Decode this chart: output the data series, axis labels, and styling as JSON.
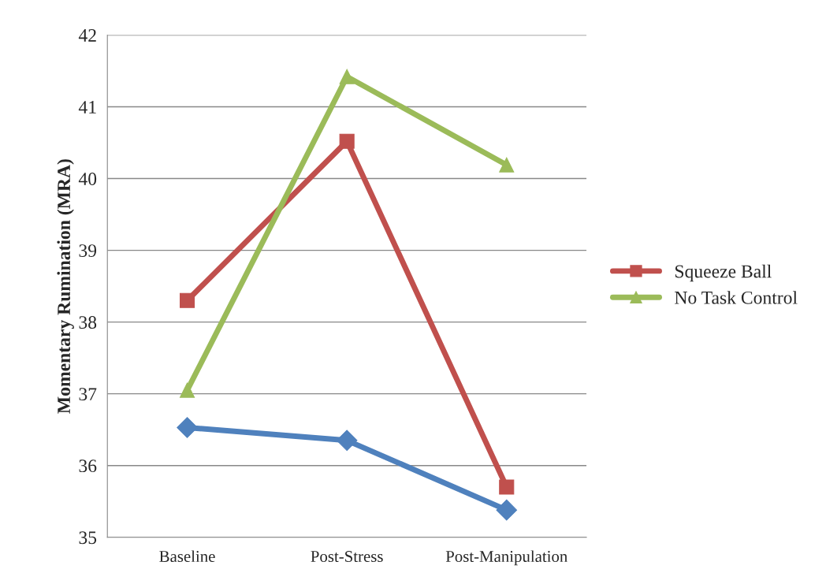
{
  "chart_data": {
    "type": "line",
    "ylabel": "Momentary Rumination (MRA)",
    "categories": [
      "Baseline",
      "Post-Stress",
      "Post-Manipulation"
    ],
    "series": [
      {
        "color": "#4f81bd",
        "marker": "diamond",
        "values": [
          36.53,
          36.35,
          35.38
        ]
      },
      {
        "name": "Squeeze Ball",
        "color": "#c0504d",
        "marker": "square",
        "values": [
          38.3,
          40.52,
          35.7
        ]
      },
      {
        "name": "No Task Control",
        "color": "#9bbb59",
        "marker": "triangle",
        "values": [
          37.05,
          41.42,
          40.19
        ]
      }
    ],
    "ylim": [
      35,
      42
    ],
    "yticks": [
      35,
      36,
      37,
      38,
      39,
      40,
      41,
      42
    ],
    "grid": "y",
    "legend": "right",
    "line_style": "solid"
  }
}
